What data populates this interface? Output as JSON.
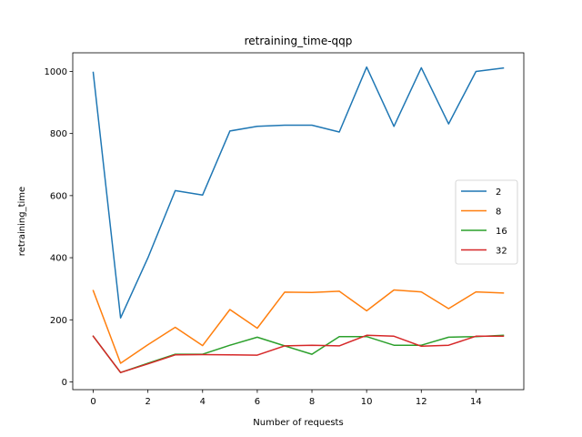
{
  "chart_data": {
    "type": "line",
    "title": "retraining_time-qqp",
    "xlabel": "Number of requests",
    "ylabel": "retraining_time",
    "xlim": [
      -0.75,
      15.75
    ],
    "ylim": [
      -25,
      1060
    ],
    "xticks": [
      0,
      2,
      4,
      6,
      8,
      10,
      12,
      14
    ],
    "yticks": [
      0,
      200,
      400,
      600,
      800,
      1000
    ],
    "grid": false,
    "legend_position": "center-right",
    "x": [
      0,
      1,
      2,
      3,
      4,
      5,
      6,
      7,
      8,
      9,
      10,
      11,
      12,
      13,
      14,
      15
    ],
    "series": [
      {
        "name": "2",
        "color": "#1f77b4",
        "values": [
          997,
          206,
          400,
          616,
          602,
          808,
          823,
          827,
          827,
          805,
          1014,
          823,
          1012,
          831,
          1000,
          1011
        ]
      },
      {
        "name": "8",
        "color": "#ff7f0e",
        "values": [
          294,
          60,
          120,
          176,
          117,
          233,
          173,
          289,
          288,
          292,
          229,
          296,
          290,
          236,
          290,
          286
        ]
      },
      {
        "name": "16",
        "color": "#2ca02c",
        "values": [
          147,
          30,
          60,
          89,
          89,
          118,
          144,
          116,
          89,
          146,
          146,
          118,
          118,
          144,
          146,
          150
        ]
      },
      {
        "name": "32",
        "color": "#d62728",
        "values": [
          147,
          30,
          58,
          87,
          88,
          87,
          86,
          116,
          118,
          116,
          150,
          147,
          115,
          118,
          147,
          147
        ]
      }
    ]
  }
}
